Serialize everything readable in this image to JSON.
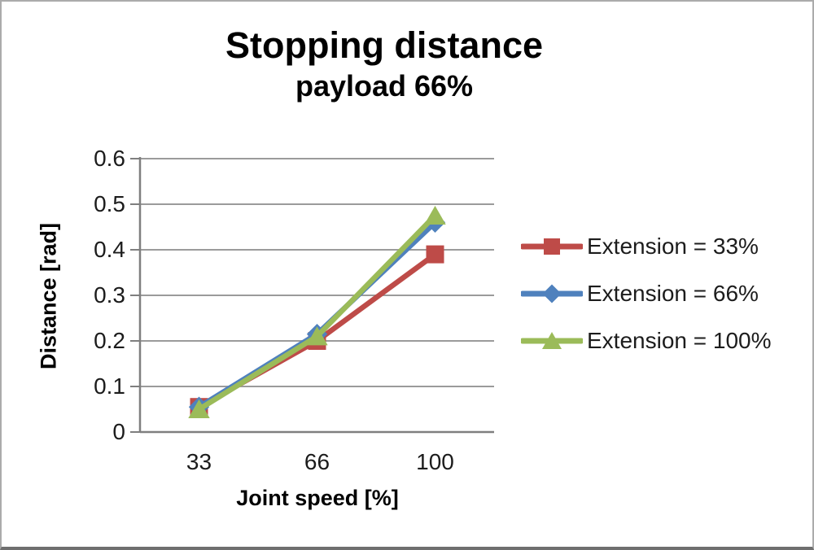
{
  "window": {
    "background": "#ffffff",
    "border_color": "#ababab"
  },
  "chart_data": {
    "type": "line",
    "title": "Stopping distance",
    "subtitle": "payload 66%",
    "xlabel": "Joint speed [%]",
    "ylabel": "Distance [rad]",
    "categories": [
      "33",
      "66",
      "100"
    ],
    "series": [
      {
        "name": "Extension = 33%",
        "color": "#be4b48",
        "marker": "square",
        "values": [
          0.055,
          0.2,
          0.39
        ]
      },
      {
        "name": "Extension = 66%",
        "color": "#4f81bd",
        "marker": "diamond",
        "values": [
          0.055,
          0.215,
          0.46
        ]
      },
      {
        "name": "Extension = 100%",
        "color": "#9bbb59",
        "marker": "triangle-up",
        "values": [
          0.05,
          0.21,
          0.475
        ]
      }
    ],
    "ylim": [
      0,
      0.6
    ],
    "yticks": [
      0,
      0.1,
      0.2,
      0.3,
      0.4,
      0.5,
      0.6
    ],
    "ytick_labels": [
      "0",
      "0.1",
      "0.2",
      "0.3",
      "0.4",
      "0.5",
      "0.6"
    ],
    "grid": true,
    "legend_position": "right",
    "gridline_color": "#9b9b9b",
    "axis_color": "#7f7f7f",
    "text_color": "#1c1c1c"
  }
}
